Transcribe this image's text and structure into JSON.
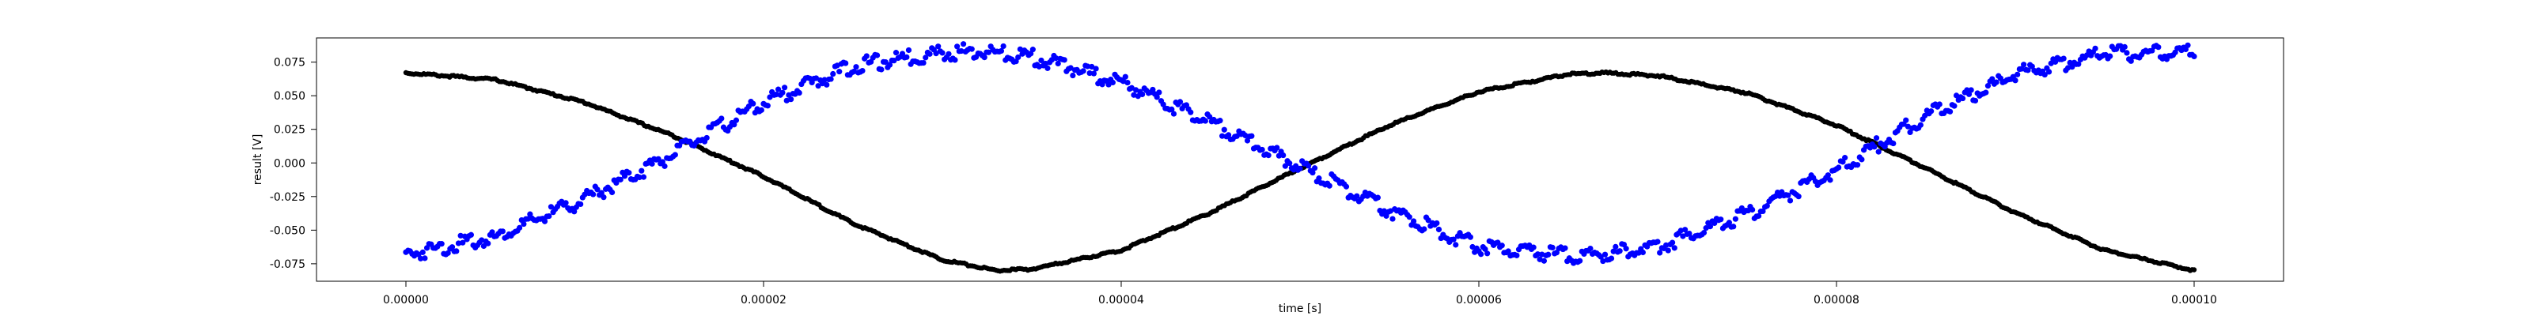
{
  "chart_data": {
    "type": "scatter",
    "title": "",
    "xlabel": "time [s]",
    "ylabel": "result [V]",
    "xlim": [
      -5e-06,
      0.000105
    ],
    "ylim": [
      -0.088,
      0.093
    ],
    "grid": false,
    "legend": "none",
    "x_tick_labels": [
      "0.00000",
      "0.00002",
      "0.00004",
      "0.00006",
      "0.00008",
      "0.00010"
    ],
    "y_tick_labels": [
      "-0.075",
      "-0.050",
      "-0.025",
      "0.000",
      "0.025",
      "0.050",
      "0.075"
    ],
    "x_ticks": [
      0.0,
      2e-05,
      4e-05,
      6e-05,
      8e-05,
      0.0001
    ],
    "y_ticks": [
      -0.075,
      -0.05,
      -0.025,
      0.0,
      0.025,
      0.05,
      0.075
    ],
    "series": [
      {
        "color": "#000000",
        "marker": "dot",
        "x": [
          0.0,
          5e-06,
          1e-05,
          1.5e-05,
          2e-05,
          2.5e-05,
          3e-05,
          3.3e-05,
          3.5e-05,
          4e-05,
          4.5e-05,
          5e-05,
          5.5e-05,
          6e-05,
          6.5e-05,
          6.7e-05,
          7e-05,
          7.5e-05,
          8e-05,
          8.5e-05,
          9e-05,
          9.5e-05,
          0.0001
        ],
        "y": [
          0.067,
          0.062,
          0.045,
          0.02,
          -0.01,
          -0.045,
          -0.072,
          -0.08,
          -0.079,
          -0.065,
          -0.037,
          -0.004,
          0.028,
          0.053,
          0.066,
          0.067,
          0.065,
          0.052,
          0.028,
          -0.004,
          -0.037,
          -0.065,
          -0.08
        ]
      },
      {
        "color": "#0000ff",
        "marker": "dot",
        "x": [
          0.0,
          5e-06,
          1e-05,
          1.5e-05,
          2e-05,
          2.5e-05,
          3e-05,
          3.2e-05,
          3.5e-05,
          4e-05,
          4.5e-05,
          5e-05,
          5.5e-05,
          6e-05,
          6.5e-05,
          6.7e-05,
          7e-05,
          7.5e-05,
          8e-05,
          8.5e-05,
          9e-05,
          9.5e-05,
          0.0001
        ],
        "y": [
          -0.068,
          -0.055,
          -0.027,
          0.007,
          0.045,
          0.072,
          0.082,
          0.083,
          0.079,
          0.06,
          0.03,
          -0.003,
          -0.035,
          -0.062,
          -0.069,
          -0.068,
          -0.062,
          -0.038,
          -0.005,
          0.035,
          0.066,
          0.081,
          0.082
        ]
      }
    ]
  }
}
